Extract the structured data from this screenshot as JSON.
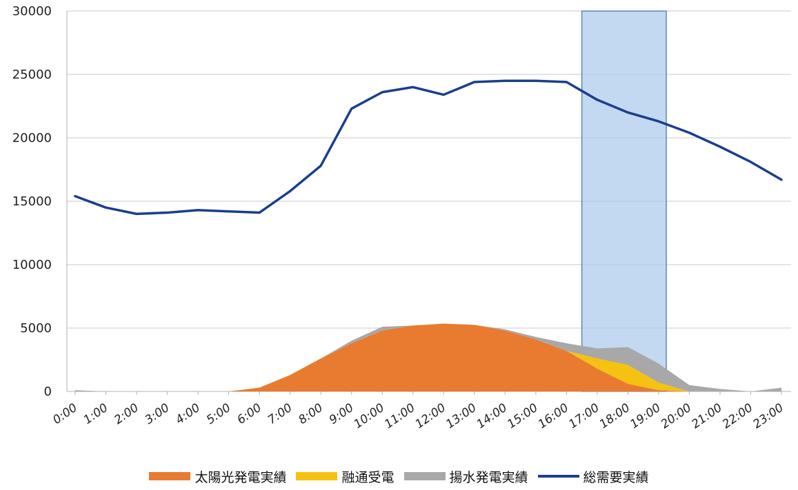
{
  "chart_data": {
    "type": "area",
    "x": [
      "0:00",
      "1:00",
      "2:00",
      "3:00",
      "4:00",
      "5:00",
      "6:00",
      "7:00",
      "8:00",
      "9:00",
      "10:00",
      "11:00",
      "12:00",
      "13:00",
      "14:00",
      "15:00",
      "16:00",
      "17:00",
      "18:00",
      "19:00",
      "20:00",
      "21:00",
      "22:00",
      "23:00"
    ],
    "xtick_labels": [
      "0:00",
      "1:00",
      "2:00",
      "3:00",
      "4:00",
      "5:00",
      "6:00",
      "7:00",
      "8:00",
      "9:00",
      "10:00",
      "11:00",
      "12:00",
      "13:00",
      "14:00",
      "15:00",
      "16:00",
      "17:00",
      "18:00",
      "19:00",
      "20:00",
      "21:00",
      "22:00",
      "23:00"
    ],
    "ylim": [
      0,
      30000
    ],
    "yticks": [
      0,
      5000,
      10000,
      15000,
      20000,
      25000,
      30000
    ],
    "grid": "horizontal",
    "legend_position": "bottom",
    "highlight": {
      "from": "16:30",
      "to": "19:15",
      "color": "#a9c9ec"
    },
    "series": [
      {
        "name": "太陽光発電実績",
        "kind": "area",
        "color": "#e87b2f",
        "values": [
          0,
          0,
          0,
          0,
          0,
          0,
          300,
          1300,
          2600,
          3800,
          4800,
          5200,
          5350,
          5250,
          4800,
          4100,
          3200,
          1800,
          600,
          100,
          0,
          0,
          0,
          0
        ]
      },
      {
        "name": "融通受電",
        "kind": "area",
        "color": "#f5c211",
        "values": [
          0,
          0,
          0,
          0,
          0,
          0,
          0,
          0,
          0,
          0,
          0,
          0,
          0,
          0,
          0,
          0,
          0,
          800,
          1500,
          600,
          0,
          0,
          0,
          0
        ]
      },
      {
        "name": "揚水発電実績",
        "kind": "area",
        "color": "#a8a8a8",
        "values": [
          100,
          0,
          0,
          0,
          0,
          0,
          0,
          0,
          0,
          200,
          300,
          0,
          0,
          0,
          100,
          200,
          600,
          800,
          1400,
          1500,
          500,
          200,
          0,
          300
        ]
      },
      {
        "name": "総需要実績",
        "kind": "line",
        "color": "#1a3e8c",
        "values": [
          15400,
          14500,
          14000,
          14100,
          14300,
          14200,
          14100,
          15800,
          17800,
          22300,
          23600,
          24000,
          23400,
          24400,
          24500,
          24500,
          24400,
          23000,
          22000,
          21300,
          20400,
          19300,
          18100,
          16700
        ]
      }
    ]
  }
}
